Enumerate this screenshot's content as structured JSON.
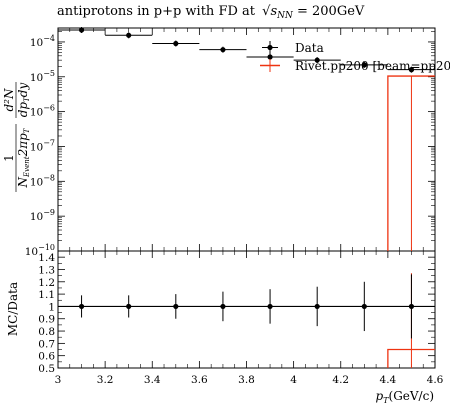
{
  "chart_data": {
    "type": "scatter",
    "title": "antiprotons in p+p with FD at",
    "title_math_sqrt": "s",
    "title_math_sub": "NN",
    "title_value": " = 200GeV",
    "ylabel_top": {
      "numerator": "1",
      "denominator_prefix": "N",
      "denominator_sub": "Event",
      "denominator_mid": "2πp",
      "denominator_sub2": "T",
      "d2n": "d²N",
      "dptdy": "dp",
      "dptdy_sub": "T",
      "dptdy_tail": "dy"
    },
    "ylabel_bottom": "MC/Data",
    "xlabel": "p",
    "xlabel_sub": "T",
    "xlabel_tail": "(GeV/c)",
    "xlim": [
      3.0,
      4.6
    ],
    "ylim_top_log10": [
      -10,
      -3.6
    ],
    "ylim_ratio": [
      0.5,
      1.45
    ],
    "x_ticks": [
      "3",
      "3.2",
      "3.4",
      "3.6",
      "3.8",
      "4",
      "4.2",
      "4.4",
      "4.6"
    ],
    "x_tick_values": [
      3.0,
      3.2,
      3.4,
      3.6,
      3.8,
      4.0,
      4.2,
      4.4,
      4.6
    ],
    "y_ticks_top": [
      {
        "base": "10",
        "exp": "−4",
        "log": -4
      },
      {
        "base": "10",
        "exp": "−5",
        "log": -5
      },
      {
        "base": "10",
        "exp": "−6",
        "log": -6
      },
      {
        "base": "10",
        "exp": "−7",
        "log": -7
      },
      {
        "base": "10",
        "exp": "−8",
        "log": -8
      },
      {
        "base": "10",
        "exp": "−9",
        "log": -9
      },
      {
        "base": "10",
        "exp": "−10",
        "log": -10
      }
    ],
    "y_ticks_ratio": [
      "0.5",
      "0.6",
      "0.7",
      "0.8",
      "0.9",
      "1",
      "1.1",
      "1.2",
      "1.3",
      "1.4"
    ],
    "y_tick_values_ratio": [
      0.5,
      0.6,
      0.7,
      0.8,
      0.9,
      1.0,
      1.1,
      1.2,
      1.3,
      1.4
    ],
    "legend": {
      "position": "top-right",
      "entries": [
        "Data",
        "Rivet.pp200 [beam=pp200"
      ]
    },
    "series": [
      {
        "name": "Data",
        "color": "#000000",
        "bins": [
          {
            "xlo": 3.0,
            "xhi": 3.2,
            "x": 3.1,
            "y": 0.00022
          },
          {
            "xlo": 3.2,
            "xhi": 3.4,
            "x": 3.3,
            "y": 0.000155
          },
          {
            "xlo": 3.4,
            "xhi": 3.6,
            "x": 3.5,
            "y": 9e-05
          },
          {
            "xlo": 3.6,
            "xhi": 3.8,
            "x": 3.7,
            "y": 6e-05
          },
          {
            "xlo": 3.8,
            "xhi": 4.0,
            "x": 3.9,
            "y": 3.7e-05
          },
          {
            "xlo": 4.0,
            "xhi": 4.2,
            "x": 4.1,
            "y": 3e-05
          },
          {
            "xlo": 4.2,
            "xhi": 4.4,
            "x": 4.3,
            "y": 2.2e-05
          },
          {
            "xlo": 4.4,
            "xhi": 4.6,
            "x": 4.5,
            "y": 1.6e-05
          }
        ]
      },
      {
        "name": "Rivet.pp200 [beam=pp200",
        "color": "#ee3311",
        "bins": [
          {
            "xlo": 4.4,
            "xhi": 4.6,
            "x": 4.5,
            "y": 1.05e-05
          }
        ]
      }
    ],
    "ratio": {
      "data_points": [
        {
          "x": 3.1,
          "y": 1.0,
          "err": 0.09
        },
        {
          "x": 3.3,
          "y": 1.0,
          "err": 0.09
        },
        {
          "x": 3.5,
          "y": 1.0,
          "err": 0.1
        },
        {
          "x": 3.7,
          "y": 1.0,
          "err": 0.12
        },
        {
          "x": 3.9,
          "y": 1.0,
          "err": 0.14
        },
        {
          "x": 4.1,
          "y": 1.0,
          "err": 0.16
        },
        {
          "x": 4.3,
          "y": 1.0,
          "err": 0.2
        },
        {
          "x": 4.5,
          "y": 1.0,
          "err": 0.26
        }
      ],
      "mc_bins": [
        {
          "xlo": 4.4,
          "xhi": 4.6,
          "y": 0.65,
          "err_hi": 1.27
        }
      ]
    }
  }
}
